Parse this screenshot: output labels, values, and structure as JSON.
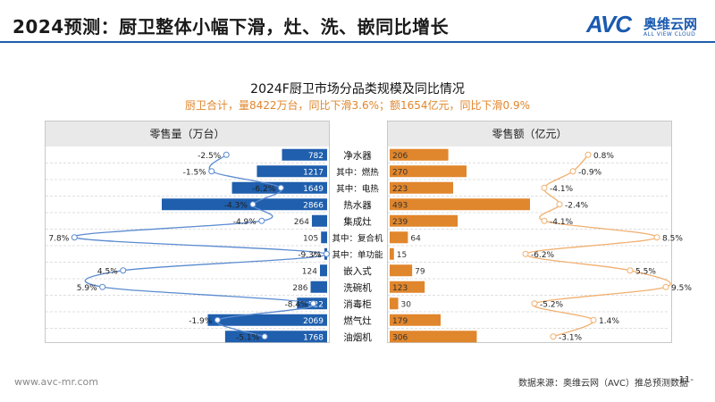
{
  "slide_title": "2024预测：厨卫整体小幅下滑，灶、洗、嵌同比增长",
  "logo": {
    "brand": "AVC",
    "cn": "奥维云网",
    "en": "ALL VIEW CLOUD"
  },
  "footer": {
    "url": "www.avc-mr.com",
    "source": "数据来源：奥维云网（AVC）推总预测数据",
    "page": "-11-"
  },
  "colors": {
    "volume": "#1f5fad",
    "value": "#e0862c",
    "panel_header": "#e9e9e9"
  },
  "chart_data": {
    "type": "bar",
    "orientation": "horizontal-butterfly",
    "title": "2024F厨卫市场分品类规模及同比情况",
    "subtitle": "厨卫合计，量8422万台，同比下滑3.6%；额1654亿元，同比下滑0.9%",
    "categories": [
      "净水器",
      "其中：燃热",
      "其中：电热",
      "热水器",
      "集成灶",
      "其中：复合机",
      "其中：单功能",
      "嵌入式",
      "洗碗机",
      "消毒柜",
      "燃气灶",
      "油烟机"
    ],
    "series": [
      {
        "name": "零售量（万台）",
        "values": [
          782,
          1217,
          1649,
          2866,
          264,
          105,
          21,
          124,
          286,
          522,
          2069,
          1768
        ],
        "growth": [
          -2.5,
          -1.5,
          -6.2,
          -4.3,
          -4.9,
          7.8,
          -9.3,
          4.5,
          5.9,
          -8.4,
          -1.9,
          -5.1
        ],
        "growth_labels": [
          "-2.5%",
          "-1.5%",
          "-6.2%",
          "-4.3%",
          "-4.9%",
          "7.8%",
          "-9.3%",
          "4.5%",
          "5.9%",
          "-8.4%",
          "-1.9%",
          "-5.1%"
        ]
      },
      {
        "name": "零售额（亿元）",
        "values": [
          206,
          270,
          223,
          493,
          239,
          64,
          15,
          79,
          123,
          30,
          179,
          306
        ],
        "growth": [
          0.8,
          -0.9,
          -4.1,
          -2.4,
          -4.1,
          8.5,
          -6.2,
          5.5,
          9.5,
          -5.2,
          1.4,
          -3.1
        ],
        "growth_labels": [
          "0.8%",
          "-0.9%",
          "-4.1%",
          "-2.4%",
          "-4.1%",
          "8.5%",
          "-6.2%",
          "5.5%",
          "9.5%",
          "-5.2%",
          "1.4%",
          "-3.1%"
        ]
      }
    ]
  }
}
